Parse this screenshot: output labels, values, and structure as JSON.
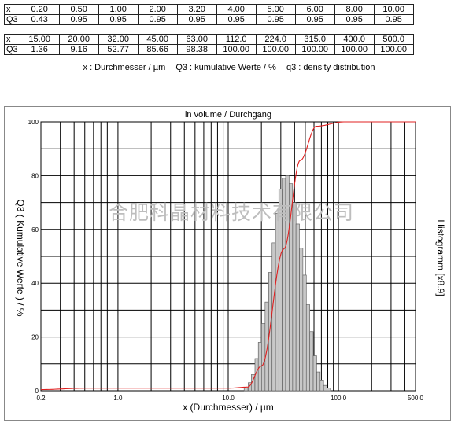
{
  "table1": {
    "row_labels": [
      "x",
      "Q3"
    ],
    "x": [
      "0.20",
      "0.50",
      "1.00",
      "2.00",
      "3.20",
      "4.00",
      "5.00",
      "6.00",
      "8.00",
      "10.00"
    ],
    "q3": [
      "0.43",
      "0.95",
      "0.95",
      "0.95",
      "0.95",
      "0.95",
      "0.95",
      "0.95",
      "0.95",
      "0.95"
    ]
  },
  "table2": {
    "row_labels": [
      "x",
      "Q3"
    ],
    "x": [
      "15.00",
      "20.00",
      "32.00",
      "45.00",
      "63.00",
      "112.0",
      "224.0",
      "315.0",
      "400.0",
      "500.0"
    ],
    "q3": [
      "1.36",
      "9.16",
      "52.77",
      "85.66",
      "98.38",
      "100.00",
      "100.00",
      "100.00",
      "100.00",
      "100.00"
    ]
  },
  "legend": {
    "x_desc": "x : Durchmesser / µm",
    "q3_desc": "Q3 : kumulative Werte / %",
    "q3_density_desc": "q3 : density distribution"
  },
  "watermark": "合肥科晶材料技术有限公司",
  "colors": {
    "cumulative_line": "#e02020",
    "histogram_fill": "#c8c8c8",
    "grid": "#000000"
  },
  "chart_data": {
    "type": "bar",
    "title": "in volume / Durchgang",
    "xlabel": "x (Durchmesser) / µm",
    "ylabel": "Q3 ( Kumulative Werte ) / %",
    "y2label": "Histogramm [x8.9]",
    "xscale": "log",
    "xlim": [
      0.2,
      500
    ],
    "ylim": [
      0,
      100
    ],
    "grid": true,
    "x_tick_labels": [
      "0.2",
      "1.0",
      "10.0",
      "100.0",
      "500.0"
    ],
    "y_tick_labels": [
      "0",
      "20",
      "40",
      "60",
      "80",
      "100"
    ],
    "cumulative": {
      "name": "Q3",
      "x": [
        0.2,
        0.5,
        1.0,
        2.0,
        3.2,
        4.0,
        5.0,
        6.0,
        8.0,
        10.0,
        15.0,
        20.0,
        32.0,
        45.0,
        63.0,
        112.0,
        224.0,
        315.0,
        400.0,
        500.0
      ],
      "y": [
        0.43,
        0.95,
        0.95,
        0.95,
        0.95,
        0.95,
        0.95,
        0.95,
        0.95,
        0.95,
        1.36,
        9.16,
        52.77,
        85.66,
        98.38,
        100.0,
        100.0,
        100.0,
        100.0,
        100.0
      ]
    },
    "histogram": {
      "name": "q3",
      "x_centers": [
        14.5,
        15.7,
        16.8,
        18.1,
        19.4,
        20.8,
        22.4,
        24.1,
        25.9,
        27.8,
        29.8,
        32.0,
        34.4,
        37.0,
        39.8,
        42.7,
        45.9,
        49.3,
        53.0,
        57.0,
        61.2,
        65.8,
        70.7,
        76.0,
        81.7
      ],
      "values": [
        1,
        3,
        6,
        12,
        18,
        25,
        33,
        44,
        55,
        66,
        75,
        79,
        80,
        77,
        70,
        62,
        53,
        43,
        32,
        22,
        13,
        7,
        4,
        2,
        1
      ]
    }
  }
}
